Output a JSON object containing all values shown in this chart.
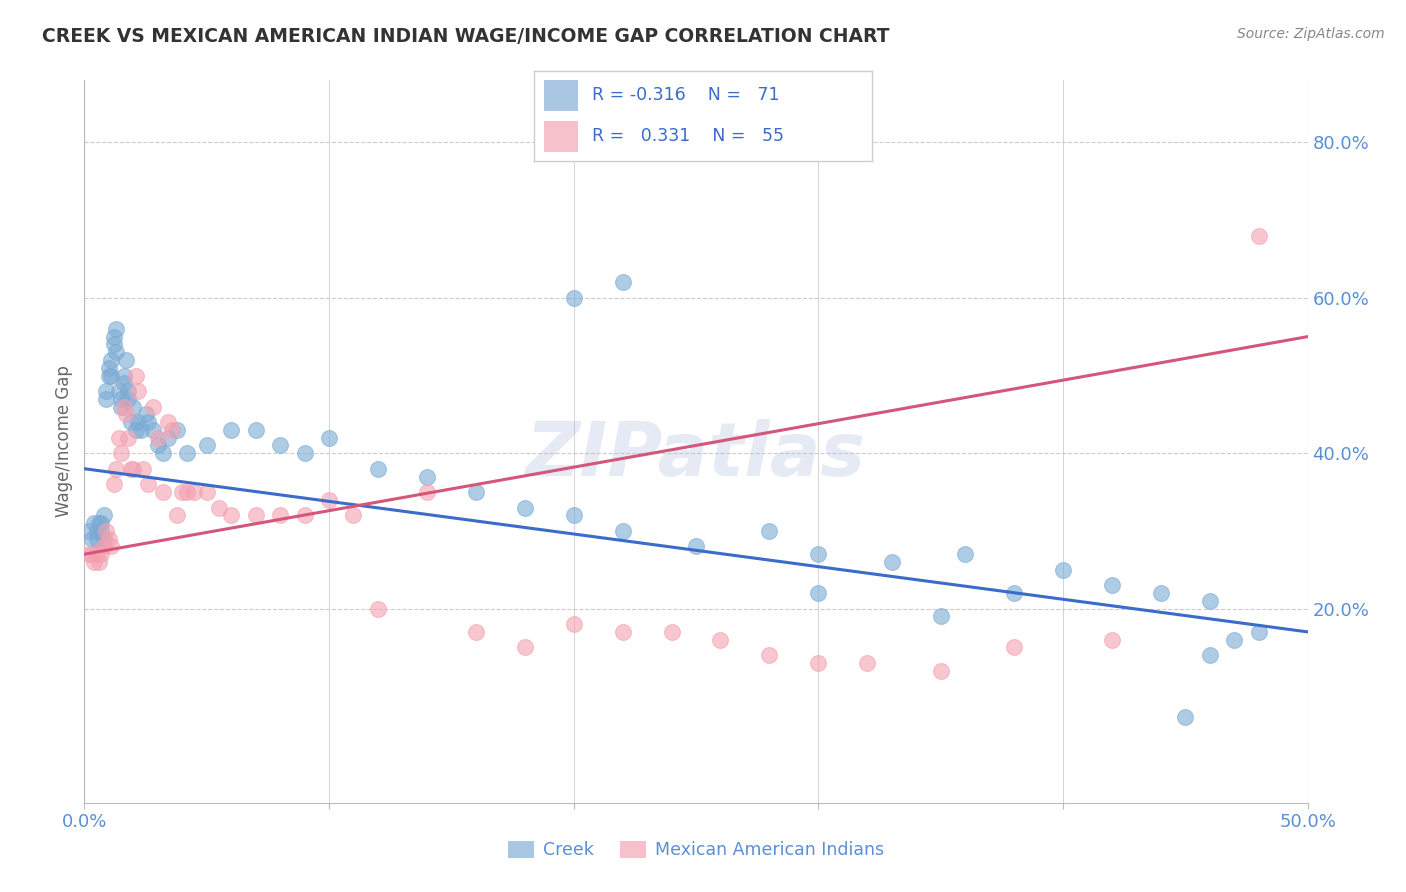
{
  "title": "CREEK VS MEXICAN AMERICAN INDIAN WAGE/INCOME GAP CORRELATION CHART",
  "source": "Source: ZipAtlas.com",
  "xlabel_creek": "Creek",
  "xlabel_mexican": "Mexican American Indians",
  "ylabel": "Wage/Income Gap",
  "creek_R": -0.316,
  "creek_N": 71,
  "mexican_R": 0.331,
  "mexican_N": 55,
  "xlim": [
    0.0,
    0.5
  ],
  "ylim": [
    -0.05,
    0.88
  ],
  "creek_color": "#7BAAD4",
  "mexican_color": "#F4A0B0",
  "creek_line_color": "#3B6CC9",
  "mexican_line_color": "#D4567A",
  "watermark": "ZIPatlas",
  "background_color": "#FFFFFF",
  "grid_color": "#CCCCCC",
  "title_color": "#333333",
  "axis_label_color": "#5B8FD4",
  "legend_text_color": "#3B6CC9",
  "legend_text_color2": "#D4567A",
  "creek_x": [
    0.002,
    0.003,
    0.004,
    0.005,
    0.005,
    0.006,
    0.007,
    0.007,
    0.008,
    0.008,
    0.009,
    0.009,
    0.01,
    0.01,
    0.011,
    0.011,
    0.012,
    0.012,
    0.013,
    0.013,
    0.014,
    0.015,
    0.015,
    0.016,
    0.016,
    0.017,
    0.018,
    0.018,
    0.019,
    0.02,
    0.021,
    0.022,
    0.023,
    0.025,
    0.026,
    0.028,
    0.03,
    0.032,
    0.034,
    0.038,
    0.042,
    0.05,
    0.06,
    0.07,
    0.08,
    0.09,
    0.1,
    0.12,
    0.14,
    0.16,
    0.18,
    0.2,
    0.22,
    0.25,
    0.28,
    0.3,
    0.33,
    0.36,
    0.4,
    0.42,
    0.44,
    0.46,
    0.48,
    0.2,
    0.22,
    0.3,
    0.35,
    0.38,
    0.45,
    0.46,
    0.47
  ],
  "creek_y": [
    0.3,
    0.29,
    0.31,
    0.3,
    0.29,
    0.31,
    0.31,
    0.3,
    0.32,
    0.29,
    0.47,
    0.48,
    0.5,
    0.51,
    0.52,
    0.5,
    0.55,
    0.54,
    0.56,
    0.53,
    0.48,
    0.47,
    0.46,
    0.5,
    0.49,
    0.52,
    0.48,
    0.47,
    0.44,
    0.46,
    0.43,
    0.44,
    0.43,
    0.45,
    0.44,
    0.43,
    0.41,
    0.4,
    0.42,
    0.43,
    0.4,
    0.41,
    0.43,
    0.43,
    0.41,
    0.4,
    0.42,
    0.38,
    0.37,
    0.35,
    0.33,
    0.32,
    0.3,
    0.28,
    0.3,
    0.27,
    0.26,
    0.27,
    0.25,
    0.23,
    0.22,
    0.21,
    0.17,
    0.6,
    0.62,
    0.22,
    0.19,
    0.22,
    0.06,
    0.14,
    0.16
  ],
  "mexican_x": [
    0.002,
    0.003,
    0.004,
    0.005,
    0.006,
    0.007,
    0.008,
    0.009,
    0.01,
    0.011,
    0.012,
    0.013,
    0.014,
    0.015,
    0.016,
    0.017,
    0.018,
    0.019,
    0.02,
    0.021,
    0.022,
    0.024,
    0.026,
    0.028,
    0.03,
    0.032,
    0.034,
    0.036,
    0.038,
    0.04,
    0.042,
    0.045,
    0.05,
    0.055,
    0.06,
    0.07,
    0.08,
    0.09,
    0.1,
    0.11,
    0.12,
    0.14,
    0.16,
    0.18,
    0.2,
    0.22,
    0.24,
    0.26,
    0.28,
    0.3,
    0.32,
    0.35,
    0.38,
    0.42,
    0.48
  ],
  "mexican_y": [
    0.27,
    0.27,
    0.26,
    0.27,
    0.26,
    0.27,
    0.28,
    0.3,
    0.29,
    0.28,
    0.36,
    0.38,
    0.42,
    0.4,
    0.46,
    0.45,
    0.42,
    0.38,
    0.38,
    0.5,
    0.48,
    0.38,
    0.36,
    0.46,
    0.42,
    0.35,
    0.44,
    0.43,
    0.32,
    0.35,
    0.35,
    0.35,
    0.35,
    0.33,
    0.32,
    0.32,
    0.32,
    0.32,
    0.34,
    0.32,
    0.2,
    0.35,
    0.17,
    0.15,
    0.18,
    0.17,
    0.17,
    0.16,
    0.14,
    0.13,
    0.13,
    0.12,
    0.15,
    0.16,
    0.68
  ]
}
